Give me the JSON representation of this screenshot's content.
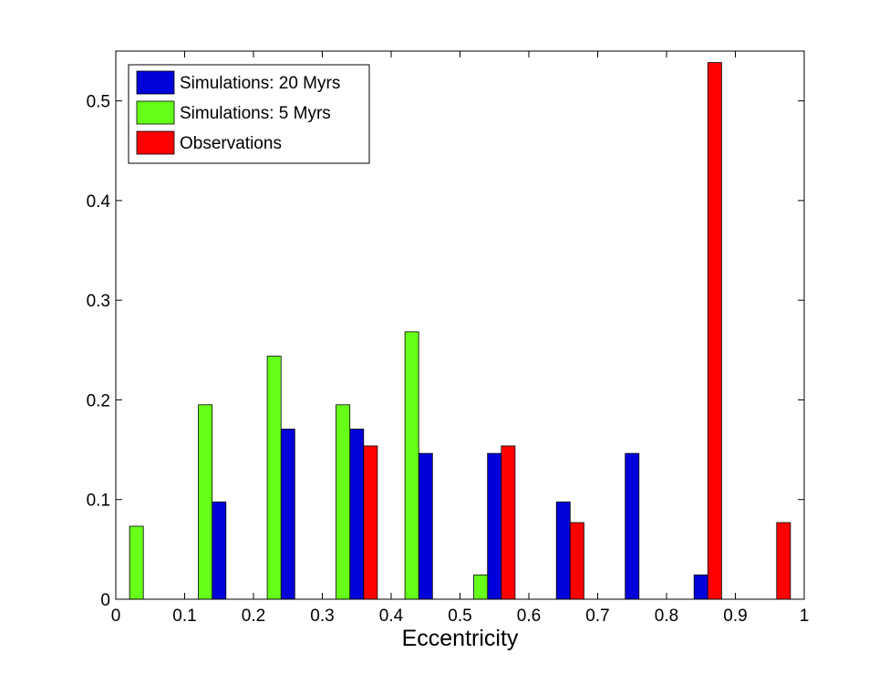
{
  "chart_data": {
    "type": "bar",
    "title": "",
    "xlabel": "Eccentricity",
    "ylabel": "",
    "xlim": [
      0,
      1
    ],
    "ylim": [
      0,
      0.55
    ],
    "x_ticks": [
      "0",
      "0.1",
      "0.2",
      "0.3",
      "0.4",
      "0.5",
      "0.6",
      "0.7",
      "0.8",
      "0.9",
      "1"
    ],
    "y_ticks": [
      "0",
      "0.1",
      "0.2",
      "0.3",
      "0.4",
      "0.5"
    ],
    "grid": false,
    "legend_position": "top-left",
    "bin_centers": [
      0.05,
      0.15,
      0.25,
      0.35,
      0.45,
      0.55,
      0.65,
      0.75,
      0.85,
      0.95
    ],
    "series": [
      {
        "name": "Simulations: 20 Myrs",
        "color": "#0000d9",
        "values": [
          0,
          0.0976,
          0.1707,
          0.1707,
          0.1463,
          0.1463,
          0.0976,
          0.1463,
          0.0244,
          0
        ]
      },
      {
        "name": "Simulations: 5 Myrs",
        "color": "#66ff1a",
        "values": [
          0.0732,
          0.1951,
          0.2439,
          0.1951,
          0.2683,
          0.0244,
          0,
          0,
          0,
          0
        ]
      },
      {
        "name": "Observations",
        "color": "#ff0000",
        "values": [
          0,
          0,
          0,
          0.1538,
          0,
          0.1538,
          0.0769,
          0,
          0.5385,
          0.0769
        ]
      }
    ]
  }
}
